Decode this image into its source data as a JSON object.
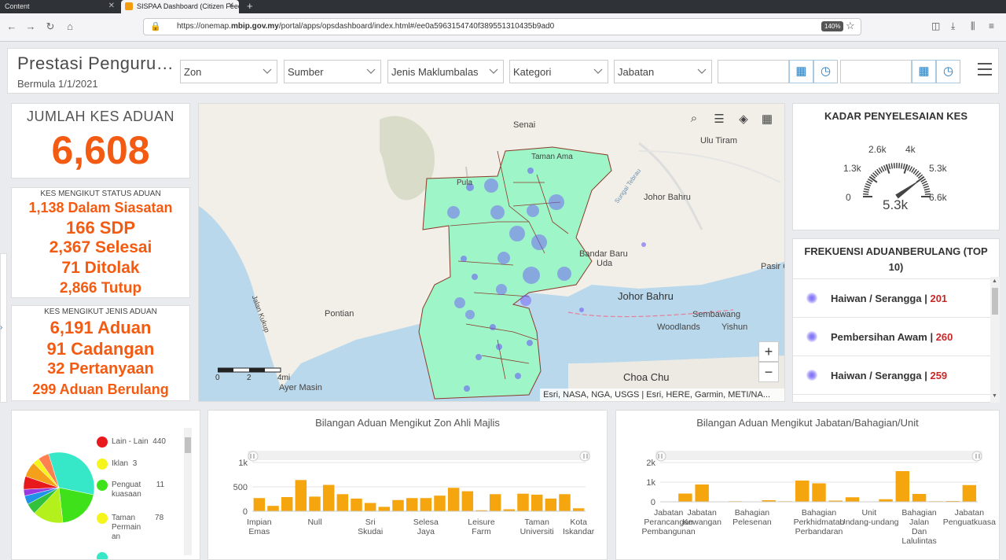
{
  "browser": {
    "tabs": [
      {
        "label": "Content",
        "active": false
      },
      {
        "label": "SISPAA Dashboard (Citizen Feed",
        "active": true
      }
    ],
    "url_prefix": "https://onemap.",
    "url_domain": "mbip.gov.my",
    "url_path": "/portal/apps/opsdashboard/index.html#/ee0a5963154740f389551310435b9ad0",
    "zoom": "140%"
  },
  "header": {
    "title": "Prestasi Penguru…",
    "subtitle": "Bermula 1/1/2021",
    "filters": [
      "Zon",
      "Sumber",
      "Jenis Maklumbalas",
      "Kategori",
      "Jabatan"
    ]
  },
  "total": {
    "title": "JUMLAH KES ADUAN",
    "value": "6,608"
  },
  "status": {
    "title": "KES MENGIKUT STATUS ADUAN",
    "lines": [
      "1,138 Dalam Siasatan",
      "166 SDP",
      "2,367 Selesai",
      "71 Ditolak",
      "2,866 Tutup"
    ]
  },
  "jenis": {
    "title": "KES MENGIKUT JENIS ADUAN",
    "lines": [
      "6,191 Aduan",
      "91 Cadangan",
      "32 Pertanyaan",
      "299 Aduan Berulang"
    ]
  },
  "map": {
    "labels": {
      "senai": "Senai",
      "ulu_tiram": "Ulu Tiram",
      "johor_bahru_n": "Johor Bahru",
      "bandar_baru_uda_1": "Bandar Baru",
      "bandar_baru_uda_2": "Uda",
      "johor_bahru": "Johor Bahru",
      "pontian": "Pontian",
      "sembawang": "Sembawang",
      "woodlands": "Woodlands",
      "yishun": "Yishun",
      "choa_chu": "Choa Chu",
      "ayer_masin": "Ayer Masin",
      "pasir": "Pasir C",
      "jalan_kukup": "Jalan Kukup",
      "sungai_tebrau": "Sungai Tebrau",
      "pulai": "Pula",
      "taman_ama": "Taman Ama"
    },
    "attribution": "Esri, NASA, NGA, USGS | Esri, HERE, Garmin, METI/NA...",
    "scale_labels": [
      "0",
      "2",
      "4mi"
    ],
    "zoom_in": "+",
    "zoom_out": "−",
    "tool_icons": [
      "search-icon",
      "list-icon",
      "layers-icon",
      "grid-icon"
    ]
  },
  "gauge": {
    "title": "KADAR PENYELESAIAN KES",
    "ticks": [
      "0",
      "1.3k",
      "2.6k",
      "4k",
      "5.3k",
      "6.6k"
    ],
    "value": "5.3k",
    "value_num": 5300,
    "max": 6600
  },
  "top10": {
    "title_line1": "FREKUENSI ADUANBERULANG (TOP",
    "title_line2": "10)",
    "items": [
      {
        "label": "Haiwan / Serangga",
        "count": "201"
      },
      {
        "label": "Pembersihan Awam",
        "count": "260"
      },
      {
        "label": "Haiwan / Serangga",
        "count": "259"
      }
    ]
  },
  "pie": {
    "legend": [
      {
        "label": "Lain - Lain",
        "value": "440",
        "color": "#e8191c"
      },
      {
        "label": "Iklan",
        "value": "3",
        "color": "#f5f51b"
      },
      {
        "label": "Penguat kuasaan",
        "value": "11",
        "color": "#3fe21a"
      },
      {
        "label": "Taman Permain an",
        "value": "78",
        "color": "#f5f51b"
      },
      {
        "label": "",
        "value": "",
        "color": "#36e8c8"
      }
    ]
  },
  "chart_data": [
    {
      "type": "pie",
      "series": [
        {
          "name": "",
          "color": "#36e8c8",
          "value": 33
        },
        {
          "name": "",
          "color": "#3fe21a",
          "value": 20
        },
        {
          "name": "",
          "color": "#b4f01c",
          "value": 14
        },
        {
          "name": "",
          "color": "#32c23c",
          "value": 5
        },
        {
          "name": "",
          "color": "#1f93e8",
          "value": 4
        },
        {
          "name": "",
          "color": "#9b39e0",
          "value": 3
        },
        {
          "name": "",
          "color": "#e8191c",
          "value": 6
        },
        {
          "name": "",
          "color": "#f5a01b",
          "value": 7
        },
        {
          "name": "",
          "color": "#f5f51b",
          "value": 3
        },
        {
          "name": "",
          "color": "#ff7f50",
          "value": 5
        }
      ]
    },
    {
      "type": "bar",
      "title": "Bilangan Aduan Mengikut Zon Ahli Majlis",
      "color": "#f5a50e",
      "ylim": [
        0,
        1000
      ],
      "yticks": [
        "0",
        "500",
        "1k"
      ],
      "ytick_values": [
        0,
        500,
        1000
      ],
      "values": [
        270,
        110,
        290,
        640,
        300,
        540,
        350,
        260,
        170,
        90,
        230,
        270,
        270,
        320,
        480,
        410,
        20,
        350,
        40,
        360,
        340,
        260,
        350,
        60
      ],
      "xlabels": [
        {
          "index": 0,
          "lines": [
            "Impian",
            "Emas"
          ]
        },
        {
          "index": 4,
          "lines": [
            "Null"
          ]
        },
        {
          "index": 8,
          "lines": [
            "Sri",
            "Skudai"
          ]
        },
        {
          "index": 12,
          "lines": [
            "Selesa",
            "Jaya"
          ]
        },
        {
          "index": 16,
          "lines": [
            "Leisure",
            "Farm"
          ]
        },
        {
          "index": 20,
          "lines": [
            "Taman",
            "Universiti"
          ]
        },
        {
          "index": 23,
          "lines": [
            "Kota",
            "Iskandar"
          ]
        }
      ]
    },
    {
      "type": "bar",
      "title": "Bilangan Aduan Mengikut Jabatan/Bahagian/Unit",
      "color": "#f5a50e",
      "ylim": [
        0,
        2000
      ],
      "yticks": [
        "0",
        "1k",
        "2k"
      ],
      "ytick_values": [
        0,
        1000,
        2000
      ],
      "values": [
        20,
        420,
        880,
        10,
        30,
        10,
        80,
        30,
        1080,
        940,
        60,
        230,
        20,
        130,
        1560,
        400,
        30,
        40,
        850
      ],
      "xlabels": [
        {
          "index": 0,
          "lines": [
            "Jabatan",
            "Perancangan",
            "Pembangunan"
          ]
        },
        {
          "index": 2,
          "lines": [
            "Jabatan",
            "Kewangan"
          ]
        },
        {
          "index": 5,
          "lines": [
            "Bahagian",
            "Pelesenan"
          ]
        },
        {
          "index": 9,
          "lines": [
            "Bahagian",
            "Perkhidmatan",
            "Perbandaran"
          ]
        },
        {
          "index": 12,
          "lines": [
            "Unit",
            "Undang-undang"
          ]
        },
        {
          "index": 15,
          "lines": [
            "Bahagian",
            "Jalan",
            "Dan",
            "Lalulintas"
          ]
        },
        {
          "index": 18,
          "lines": [
            "Jabatan",
            "Penguatkuasa"
          ]
        }
      ]
    }
  ]
}
